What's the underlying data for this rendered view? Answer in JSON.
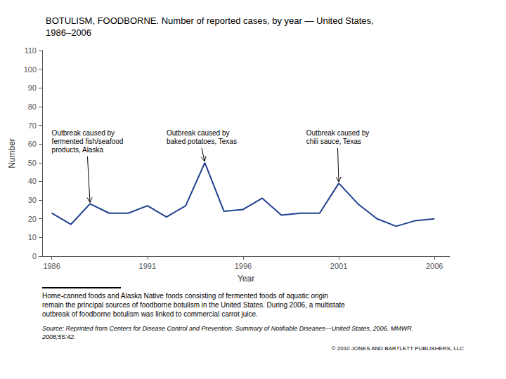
{
  "chart_data": {
    "type": "line",
    "title": "BOTULISM, FOODBORNE. Number of reported cases, by year — United States,\n1986–2006",
    "xlabel": "Year",
    "ylabel": "Number",
    "x": [
      1986,
      1987,
      1988,
      1989,
      1990,
      1991,
      1992,
      1993,
      1994,
      1995,
      1996,
      1997,
      1998,
      1999,
      2000,
      2001,
      2002,
      2003,
      2004,
      2005,
      2006
    ],
    "values": [
      23,
      17,
      28,
      23,
      23,
      27,
      21,
      27,
      50,
      24,
      25,
      31,
      22,
      23,
      23,
      39,
      28,
      20,
      16,
      19,
      20
    ],
    "color": "#1f3f8f",
    "xlim": [
      1985.5,
      2006.8
    ],
    "xticks": [
      1986,
      1991,
      1996,
      2001,
      2006
    ],
    "ylim": [
      0,
      110
    ],
    "yticks": [
      0,
      10,
      20,
      30,
      40,
      50,
      60,
      70,
      80,
      90,
      100,
      110
    ],
    "grid": false,
    "annotations": [
      {
        "text": "Outbreak caused by\nfermented fish/seafood\nproducts, Alaska",
        "xy": [
          1988,
          28
        ],
        "xytext": [
          1986.0,
          68
        ]
      },
      {
        "text": "Outbreak caused by\nbaked potatoes, Texas",
        "xy": [
          1994,
          50
        ],
        "xytext": [
          1992.0,
          68
        ]
      },
      {
        "text": "Outbreak caused by\nchili sauce, Texas",
        "xy": [
          2001,
          39
        ],
        "xytext": [
          1999.3,
          68
        ]
      }
    ],
    "footnote": "Home-canned foods and Alaska Native foods consisting of fermented foods of aquatic origin\nremain the principal sources of foodborne botulism in the United States. During 2006, a multistate\noutbreak of foodborne botulism was linked to commercial carrot juice.",
    "source": "Source: Reprinted from Centers for Disease Control and Prevention. Summary of Notifiable Diseases—United States, 2006. MMWR.\n2008;55:42.",
    "copyright": "© 2010 JONES AND BARTLETT PUBLISHERS, LLC"
  }
}
